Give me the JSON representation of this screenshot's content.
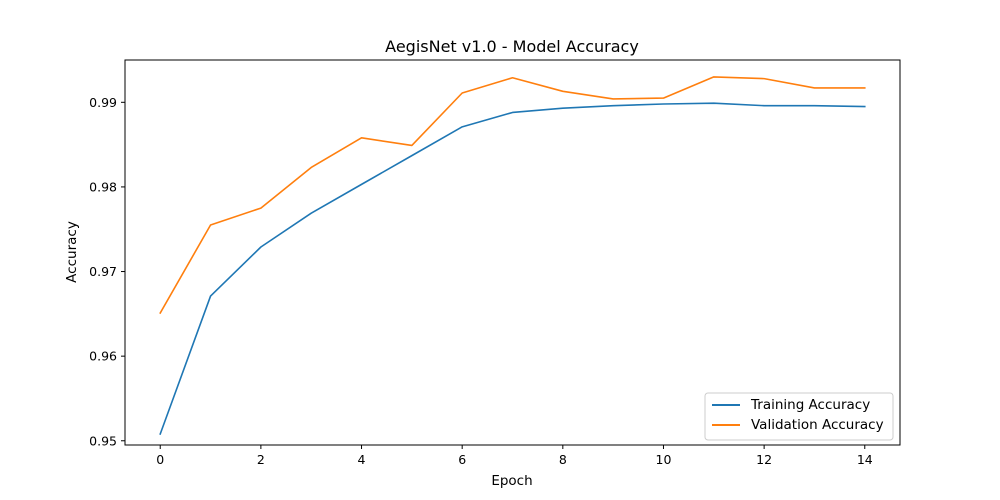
{
  "chart_data": {
    "type": "line",
    "title": "AegisNet v1.0 - Model Accuracy",
    "xlabel": "Epoch",
    "ylabel": "Accuracy",
    "xlim": [
      -0.7,
      14.7
    ],
    "ylim": [
      0.9495,
      0.995
    ],
    "xticks": [
      0,
      2,
      4,
      6,
      8,
      10,
      12,
      14
    ],
    "yticks": [
      0.95,
      0.96,
      0.97,
      0.98,
      0.99
    ],
    "ytick_labels": [
      "0.95",
      "0.96",
      "0.97",
      "0.98",
      "0.99"
    ],
    "grid": false,
    "legend": "lower-right",
    "x": [
      0,
      1,
      2,
      3,
      4,
      5,
      6,
      7,
      8,
      9,
      10,
      11,
      12,
      13,
      14
    ],
    "series": [
      {
        "name": "Training Accuracy",
        "color": "#1f77b4",
        "values": [
          0.9508,
          0.9671,
          0.9729,
          0.9769,
          0.9803,
          0.9837,
          0.9871,
          0.9888,
          0.9893,
          0.9896,
          0.9898,
          0.9899,
          0.9896,
          0.9896,
          0.9895
        ]
      },
      {
        "name": "Validation Accuracy",
        "color": "#ff7f0e",
        "values": [
          0.9651,
          0.9755,
          0.9775,
          0.9823,
          0.9858,
          0.9849,
          0.9911,
          0.9929,
          0.9913,
          0.9904,
          0.9905,
          0.993,
          0.9928,
          0.9917,
          0.9917
        ]
      }
    ]
  }
}
